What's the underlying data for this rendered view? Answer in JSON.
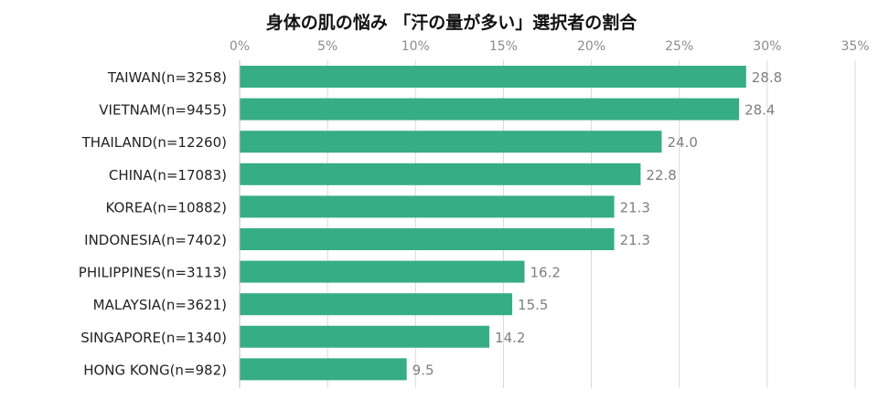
{
  "chart_data": {
    "type": "bar",
    "orientation": "horizontal",
    "title": "身体の肌の悩み 「汗の量が多い」選択者の割合",
    "categories": [
      "TAIWAN(n=3258)",
      "VIETNAM(n=9455)",
      "THAILAND(n=12260)",
      "CHINA(n=17083)",
      "KOREA(n=10882)",
      "INDONESIA(n=7402)",
      "PHILIPPINES(n=3113)",
      "MALAYSIA(n=3621)",
      "SINGAPORE(n=1340)",
      "HONG KONG(n=982)"
    ],
    "values": [
      28.8,
      28.4,
      24.0,
      22.8,
      21.3,
      21.3,
      16.2,
      15.5,
      14.2,
      9.5
    ],
    "data_labels": [
      "28.8",
      "28.4",
      "24.0",
      "22.8",
      "21.3",
      "21.3",
      "16.2",
      "15.5",
      "14.2",
      "9.5"
    ],
    "xlim": [
      0,
      35
    ],
    "xticks": [
      "0%",
      "5%",
      "10%",
      "15%",
      "20%",
      "25%",
      "30%",
      "35%"
    ],
    "xaxis_position": "top",
    "grid": true,
    "bar_color": "#36ad85",
    "xlabel": "",
    "ylabel": ""
  }
}
